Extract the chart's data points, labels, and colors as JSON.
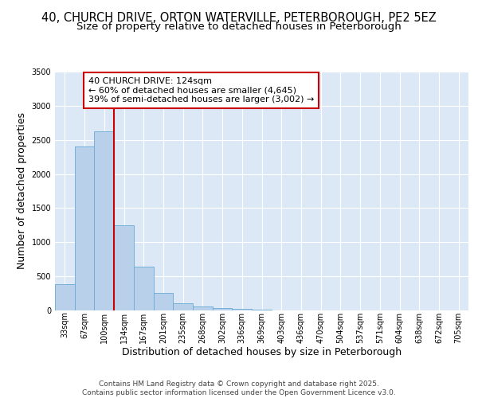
{
  "title_line1": "40, CHURCH DRIVE, ORTON WATERVILLE, PETERBOROUGH, PE2 5EZ",
  "title_line2": "Size of property relative to detached houses in Peterborough",
  "xlabel": "Distribution of detached houses by size in Peterborough",
  "ylabel": "Number of detached properties",
  "bar_labels": [
    "33sqm",
    "67sqm",
    "100sqm",
    "134sqm",
    "167sqm",
    "201sqm",
    "235sqm",
    "268sqm",
    "302sqm",
    "336sqm",
    "369sqm",
    "403sqm",
    "436sqm",
    "470sqm",
    "504sqm",
    "537sqm",
    "571sqm",
    "604sqm",
    "638sqm",
    "672sqm",
    "705sqm"
  ],
  "bar_values": [
    380,
    2400,
    2620,
    1250,
    640,
    260,
    110,
    55,
    40,
    20,
    10,
    5,
    2,
    1,
    0,
    0,
    0,
    0,
    0,
    0,
    0
  ],
  "bar_color": "#b8d0ea",
  "bar_edge_color": "#6aaad4",
  "background_color": "#dce8f5",
  "grid_color": "#ffffff",
  "annotation_title": "40 CHURCH DRIVE: 124sqm",
  "annotation_line2": "← 60% of detached houses are smaller (4,645)",
  "annotation_line3": "39% of semi-detached houses are larger (3,002) →",
  "annotation_box_color": "#ffffff",
  "annotation_box_edge": "#cc0000",
  "vline_color": "#cc0000",
  "vline_x": 2.5,
  "ylim": [
    0,
    3500
  ],
  "yticks": [
    0,
    500,
    1000,
    1500,
    2000,
    2500,
    3000,
    3500
  ],
  "footer_line1": "Contains HM Land Registry data © Crown copyright and database right 2025.",
  "footer_line2": "Contains public sector information licensed under the Open Government Licence v3.0.",
  "title_fontsize": 10.5,
  "subtitle_fontsize": 9.5,
  "axis_label_fontsize": 9,
  "tick_fontsize": 7,
  "annotation_fontsize": 8,
  "footer_fontsize": 6.5
}
